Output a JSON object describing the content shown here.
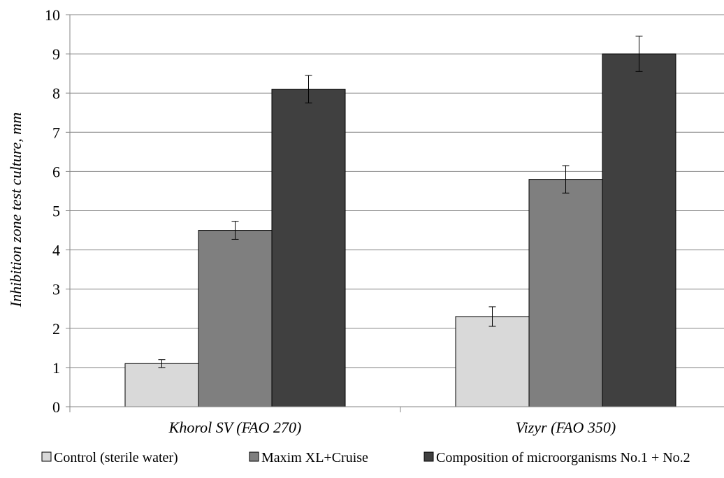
{
  "chart_data": {
    "type": "bar",
    "title": "",
    "xlabel": "",
    "ylabel": "Inhibition zone test culture, mm",
    "categories": [
      "Khorol SV (FAO 270)",
      "Vizyr (FAO 350)"
    ],
    "ylim": [
      0,
      10
    ],
    "yticks": [
      0,
      1,
      2,
      3,
      4,
      5,
      6,
      7,
      8,
      9,
      10
    ],
    "grid": true,
    "legend_position": "bottom",
    "series": [
      {
        "name": "Control (sterile water)",
        "values": [
          1.1,
          2.3
        ],
        "errors": [
          0.1,
          0.25
        ],
        "color": "#d9d9d9"
      },
      {
        "name": "Maxim XL+Cruise",
        "values": [
          4.5,
          5.8
        ],
        "errors": [
          0.23,
          0.35
        ],
        "color": "#7f7f7f"
      },
      {
        "name": "Composition of microorganisms No.1 + No.2",
        "values": [
          8.1,
          9.0
        ],
        "errors": [
          0.35,
          0.45
        ],
        "color": "#404040"
      }
    ]
  }
}
